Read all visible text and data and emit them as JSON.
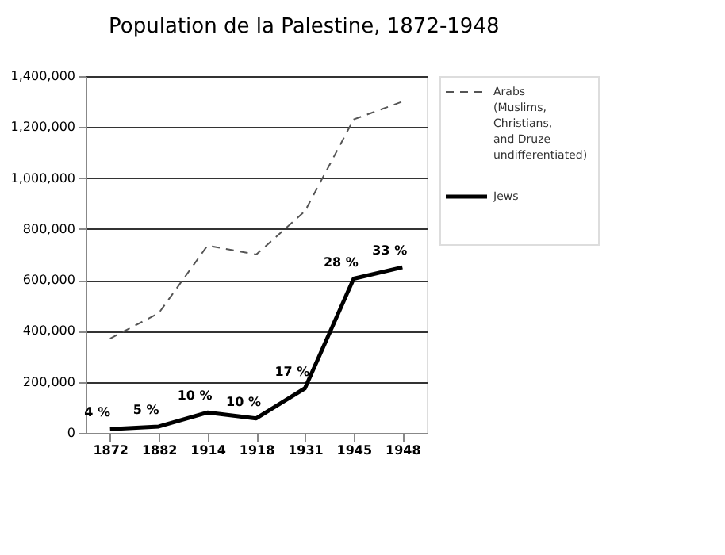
{
  "chart_data": {
    "type": "line",
    "title": "Population de la Palestine, 1872-1948",
    "categories": [
      "1872",
      "1882",
      "1914",
      "1918",
      "1931",
      "1945",
      "1948"
    ],
    "series": [
      {
        "name": "Arabs\n(Muslims,\nChristians,\nand Druze\nundifferentiated)",
        "color": "#555555",
        "line_style": "dashed",
        "values": [
          370000,
          470000,
          735000,
          700000,
          870000,
          1230000,
          1300000
        ]
      },
      {
        "name": "Jews",
        "color": "#000000",
        "line_style": "solid",
        "values": [
          15000,
          25000,
          80000,
          57000,
          175000,
          605000,
          650000
        ]
      }
    ],
    "annotations": [
      {
        "text": "4 %",
        "x": "1872",
        "y": 15000
      },
      {
        "text": "5 %",
        "x": "1882",
        "y": 25000
      },
      {
        "text": "10 %",
        "x": "1914",
        "y": 80000
      },
      {
        "text": "10 %",
        "x": "1918",
        "y": 57000
      },
      {
        "text": "17 %",
        "x": "1931",
        "y": 175000
      },
      {
        "text": "28 %",
        "x": "1945",
        "y": 605000
      },
      {
        "text": "33 %",
        "x": "1948",
        "y": 650000
      }
    ],
    "ylim": [
      0,
      1400000
    ],
    "yticks": [
      0,
      {
        "value": 200000,
        "label": "200,000"
      },
      {
        "value": 400000,
        "label": "400,000"
      },
      {
        "value": 600000,
        "label": "600,000"
      },
      {
        "value": 800000,
        "label": "800,000"
      },
      {
        "value": 1000000,
        "label": "1,000,000"
      },
      {
        "value": 1200000,
        "label": "1,200,000"
      },
      {
        "value": 1400000,
        "label": "1,400,000"
      }
    ],
    "grid": "y",
    "legend": "right",
    "marker": "none"
  }
}
